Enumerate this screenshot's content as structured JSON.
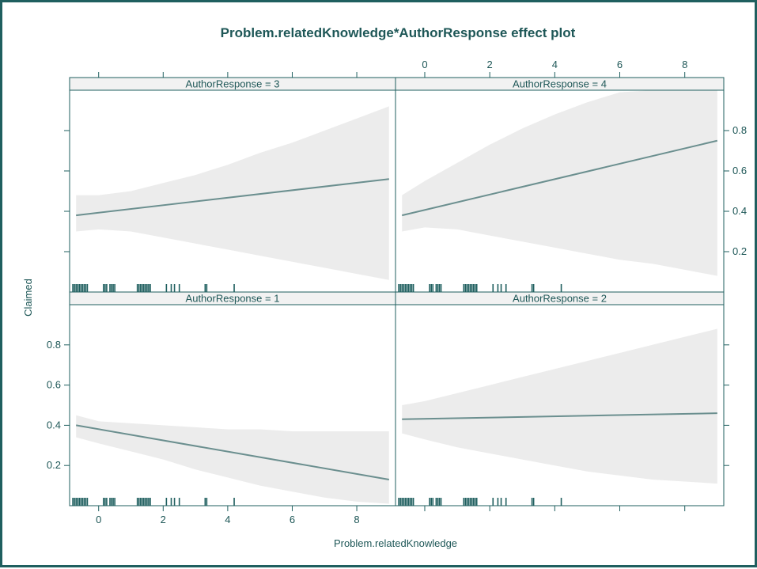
{
  "chart_data": {
    "type": "line",
    "title": "Problem.relatedKnowledge*AuthorResponse effect plot",
    "xlabel": "Problem.relatedKnowledge",
    "ylabel": "Claimed",
    "xlim": [
      -0.9,
      9.2
    ],
    "ylim": [
      0,
      1
    ],
    "x_ticks": [
      0,
      2,
      4,
      6,
      8
    ],
    "y_ticks": [
      0.2,
      0.4,
      0.6,
      0.8
    ],
    "grid": false,
    "colors": {
      "line": "#6b8f8f",
      "band": "#ececec",
      "text": "#1e5757",
      "frame": "#1f5f5f",
      "strip": "#f2f2f2"
    },
    "panels": [
      {
        "strip": "AuthorResponse = 3",
        "x": [
          -0.7,
          9
        ],
        "y": [
          0.38,
          0.56
        ],
        "band_x": [
          -0.7,
          0,
          1,
          2,
          3,
          4,
          5,
          6,
          7,
          8,
          9
        ],
        "band_lower": [
          0.3,
          0.31,
          0.3,
          0.27,
          0.24,
          0.21,
          0.18,
          0.15,
          0.12,
          0.09,
          0.06
        ],
        "band_upper": [
          0.48,
          0.48,
          0.5,
          0.54,
          0.58,
          0.63,
          0.69,
          0.74,
          0.8,
          0.86,
          0.92
        ]
      },
      {
        "strip": "AuthorResponse = 4",
        "x": [
          -0.7,
          9
        ],
        "y": [
          0.38,
          0.75
        ],
        "band_x": [
          -0.7,
          0,
          1,
          2,
          3,
          4,
          5,
          6,
          7,
          8,
          9
        ],
        "band_lower": [
          0.3,
          0.32,
          0.31,
          0.28,
          0.25,
          0.22,
          0.19,
          0.16,
          0.14,
          0.11,
          0.08
        ],
        "band_upper": [
          0.48,
          0.55,
          0.64,
          0.73,
          0.81,
          0.88,
          0.94,
          0.99,
          1,
          1,
          1
        ]
      },
      {
        "strip": "AuthorResponse = 1",
        "x": [
          -0.7,
          9
        ],
        "y": [
          0.4,
          0.13
        ],
        "band_x": [
          -0.7,
          0,
          1,
          2,
          3,
          4,
          5,
          6,
          7,
          8,
          9
        ],
        "band_lower": [
          0.34,
          0.31,
          0.27,
          0.23,
          0.18,
          0.14,
          0.1,
          0.07,
          0.04,
          0.02,
          0.01
        ],
        "band_upper": [
          0.45,
          0.42,
          0.41,
          0.4,
          0.39,
          0.38,
          0.38,
          0.37,
          0.37,
          0.37,
          0.37
        ]
      },
      {
        "strip": "AuthorResponse = 2",
        "x": [
          -0.7,
          9
        ],
        "y": [
          0.43,
          0.46
        ],
        "band_x": [
          -0.7,
          0,
          1,
          2,
          3,
          4,
          5,
          6,
          7,
          8,
          9
        ],
        "band_lower": [
          0.36,
          0.33,
          0.29,
          0.26,
          0.23,
          0.2,
          0.17,
          0.15,
          0.13,
          0.12,
          0.11
        ],
        "band_upper": [
          0.5,
          0.52,
          0.56,
          0.6,
          0.64,
          0.68,
          0.72,
          0.76,
          0.8,
          0.84,
          0.88
        ]
      }
    ],
    "rug_x": [
      -0.8,
      -0.75,
      -0.7,
      -0.65,
      -0.6,
      -0.55,
      -0.5,
      -0.45,
      -0.4,
      -0.35,
      0.15,
      0.2,
      0.25,
      0.35,
      0.4,
      0.45,
      0.5,
      1.2,
      1.25,
      1.3,
      1.35,
      1.4,
      1.45,
      1.5,
      1.55,
      1.6,
      2.1,
      2.25,
      2.35,
      2.5,
      3.3,
      3.35,
      4.2
    ]
  }
}
